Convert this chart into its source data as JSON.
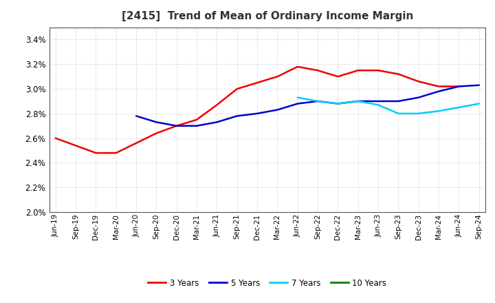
{
  "title": "[2415]  Trend of Mean of Ordinary Income Margin",
  "x_labels": [
    "Jun-19",
    "Sep-19",
    "Dec-19",
    "Mar-20",
    "Jun-20",
    "Sep-20",
    "Dec-20",
    "Mar-21",
    "Jun-21",
    "Sep-21",
    "Dec-21",
    "Mar-22",
    "Jun-22",
    "Sep-22",
    "Dec-22",
    "Mar-23",
    "Jun-23",
    "Sep-23",
    "Dec-23",
    "Mar-24",
    "Jun-24",
    "Sep-24"
  ],
  "y_min": 0.02,
  "y_max": 0.035,
  "y_ticks": [
    0.02,
    0.022,
    0.024,
    0.026,
    0.028,
    0.03,
    0.032,
    0.034
  ],
  "series": {
    "3 Years": {
      "color": "#EE0000",
      "values": [
        0.026,
        0.0254,
        0.0248,
        0.0248,
        0.0256,
        0.0264,
        0.027,
        0.0275,
        0.0287,
        0.03,
        0.0305,
        0.031,
        0.0318,
        0.0315,
        0.031,
        0.0315,
        0.0315,
        0.0312,
        0.0306,
        0.0302,
        0.0302,
        null
      ]
    },
    "5 Years": {
      "color": "#0000CC",
      "values": [
        null,
        null,
        null,
        null,
        0.0278,
        0.0273,
        0.027,
        0.027,
        0.0273,
        0.0278,
        0.028,
        0.0283,
        0.0288,
        0.029,
        0.0288,
        0.029,
        0.029,
        0.029,
        0.0293,
        0.0298,
        0.0302,
        0.0303
      ]
    },
    "7 Years": {
      "color": "#00CCFF",
      "values": [
        null,
        null,
        null,
        null,
        null,
        null,
        null,
        null,
        null,
        null,
        null,
        null,
        0.0293,
        0.029,
        0.0288,
        0.029,
        0.0287,
        0.028,
        0.028,
        0.0282,
        0.0285,
        0.0288
      ]
    },
    "10 Years": {
      "color": "#008000",
      "values": [
        null,
        null,
        null,
        null,
        null,
        null,
        null,
        null,
        null,
        null,
        null,
        null,
        null,
        null,
        null,
        null,
        null,
        null,
        null,
        null,
        null,
        null
      ]
    }
  },
  "legend_order": [
    "3 Years",
    "5 Years",
    "7 Years",
    "10 Years"
  ],
  "background_color": "#FFFFFF",
  "plot_bg_color": "#FFFFFF"
}
